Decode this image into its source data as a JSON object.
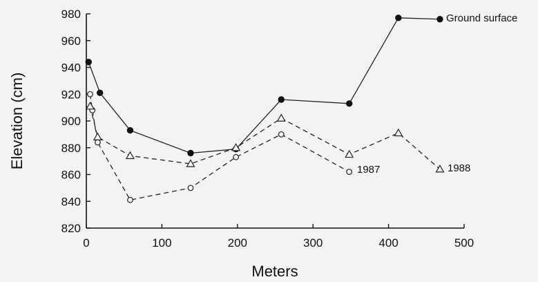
{
  "chart_data": {
    "type": "line",
    "title": "",
    "xlabel": "Meters",
    "ylabel": "Elevation (cm)",
    "xlim": [
      0,
      500
    ],
    "ylim": [
      820,
      980
    ],
    "xticks": [
      0,
      100,
      200,
      300,
      400,
      500
    ],
    "yticks": [
      820,
      840,
      860,
      880,
      900,
      920,
      940,
      960,
      980
    ],
    "grid": false,
    "series": [
      {
        "name": "Ground surface",
        "marker": "filled-circle",
        "line": "solid",
        "x": [
          3,
          18,
          58,
          138,
          198,
          258,
          348,
          413,
          468
        ],
        "y": [
          944,
          921,
          893,
          876,
          879,
          916,
          913,
          977,
          976
        ]
      },
      {
        "name": "1987",
        "marker": "open-circle",
        "line": "dashed",
        "x": [
          5,
          8,
          15,
          58,
          138,
          198,
          258,
          348
        ],
        "y": [
          920,
          908,
          884,
          841,
          850,
          873,
          890,
          862
        ]
      },
      {
        "name": "1988",
        "marker": "open-triangle",
        "line": "dashed",
        "x": [
          5,
          15,
          58,
          138,
          198,
          258,
          348,
          413,
          468
        ],
        "y": [
          911,
          888,
          874,
          868,
          880,
          902,
          875,
          891,
          864
        ]
      }
    ]
  }
}
